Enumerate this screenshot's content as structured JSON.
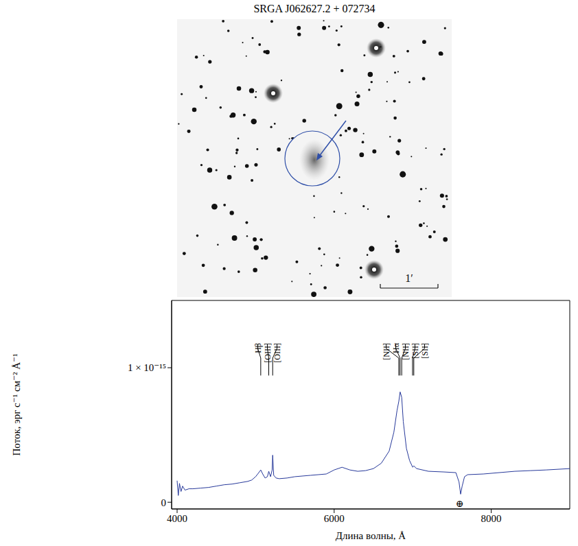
{
  "title": "SRGA J062627.2 + 072734",
  "image": {
    "scale_bar_label": "1′"
  },
  "chart_data": {
    "type": "line",
    "color": "#26389a",
    "x": [
      4000,
      4015,
      4030,
      4050,
      4070,
      4100,
      4150,
      4200,
      4300,
      4400,
      4500,
      4600,
      4700,
      4800,
      4900,
      4950,
      5000,
      5040,
      5065,
      5090,
      5120,
      5150,
      5167,
      5190,
      5210,
      5217,
      5230,
      5260,
      5300,
      5400,
      5500,
      5600,
      5700,
      5800,
      5900,
      6000,
      6100,
      6200,
      6300,
      6400,
      6500,
      6600,
      6700,
      6760,
      6800,
      6823,
      6840,
      6860,
      6880,
      6920,
      6960,
      7000,
      7014,
      7050,
      7200,
      7400,
      7550,
      7590,
      7610,
      7630,
      7660,
      7700,
      7900,
      8100,
      8300,
      8500,
      8700,
      9000
    ],
    "values": [
      1.6e-16,
      5e-17,
      1.4e-16,
      8e-17,
      1.2e-16,
      9e-17,
      1e-16,
      1e-16,
      1.05e-16,
      1.1e-16,
      1.2e-16,
      1.3e-16,
      1.35e-16,
      1.45e-16,
      1.55e-16,
      1.65e-16,
      1.9e-16,
      2.2e-16,
      2.4e-16,
      2.1e-16,
      1.8e-16,
      1.9e-16,
      2.3e-16,
      1.9e-16,
      2.4e-16,
      3.5e-16,
      2e-16,
      1.8e-16,
      1.75e-16,
      1.8e-16,
      1.9e-16,
      1.95e-16,
      2e-16,
      2.05e-16,
      2.1e-16,
      2.4e-16,
      2.6e-16,
      2.4e-16,
      2.3e-16,
      2.35e-16,
      2.5e-16,
      2.9e-16,
      3.8e-16,
      5.2e-16,
      6.8e-16,
      7.5e-16,
      8.2e-16,
      7.8e-16,
      6e-16,
      4e-16,
      3.1e-16,
      2.6e-16,
      2.7e-16,
      2.5e-16,
      2.3e-16,
      2.25e-16,
      2.2e-16,
      1.5e-16,
      6e-17,
      1.2e-16,
      1.9e-16,
      2.05e-16,
      2.1e-16,
      2.2e-16,
      2.3e-16,
      2.35e-16,
      2.4e-16,
      2.5e-16
    ],
    "xlim": [
      3930,
      9000
    ],
    "xticks": [
      4000,
      6000,
      8000
    ],
    "ylim": [
      -5e-17,
      1.5e-15
    ],
    "yticks": [
      0,
      {
        "value": 1e-15,
        "label": "1 × 10⁻¹⁵"
      }
    ],
    "x_label": "Длина волны, Å",
    "y_label": "Поток, эрг с⁻¹ см⁻² Å⁻¹",
    "annotations": [
      {
        "label": "Hβ",
        "x": 5065
      },
      {
        "label": "[OIII]",
        "x": 5167
      },
      {
        "label": "[OIII]",
        "x": 5217
      },
      {
        "label": "[NII]",
        "x": 6823
      },
      {
        "label": "Hα",
        "x": 6839
      },
      {
        "label": "[NII]",
        "x": 6860
      },
      {
        "label": "[SII]",
        "x": 6998
      },
      {
        "label": "[SII]",
        "x": 7014
      }
    ],
    "telluric": {
      "label": "⊕",
      "x": 7600
    }
  }
}
